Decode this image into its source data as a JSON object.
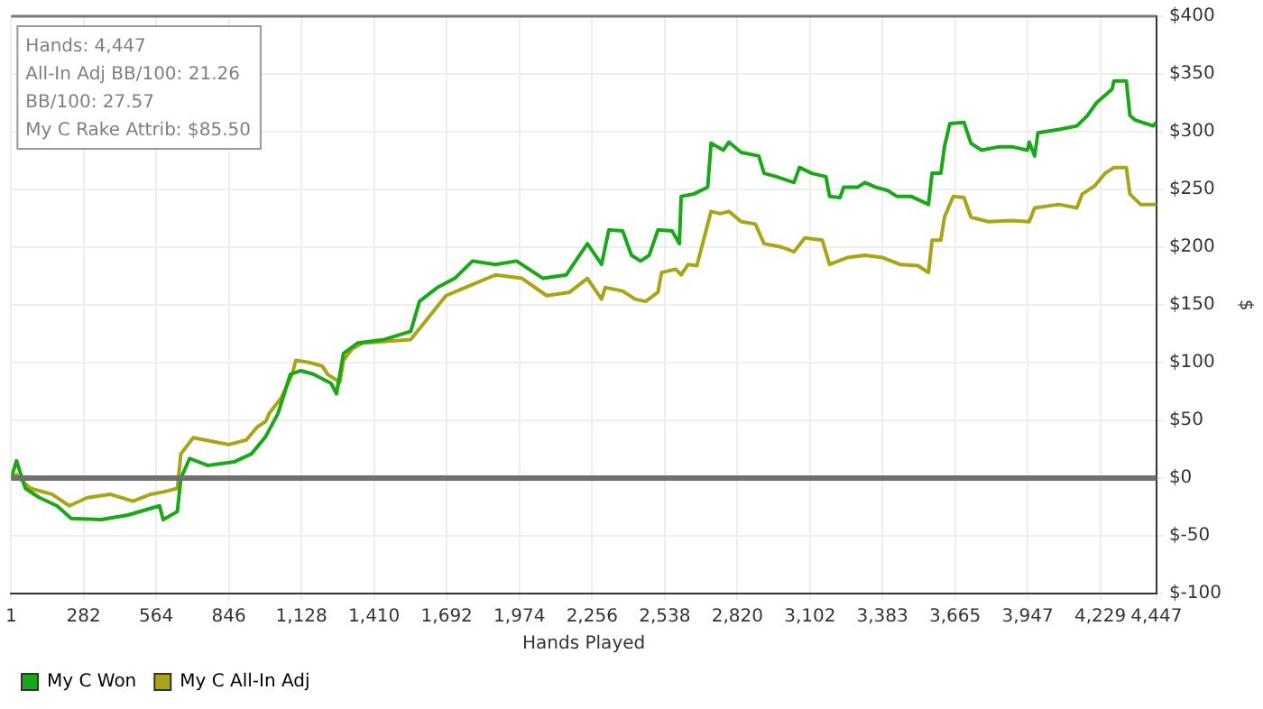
{
  "chart_data": {
    "type": "line",
    "xlabel": "Hands Played",
    "ylabel": "$",
    "annotations": [
      "Hands: 4,447",
      "All-In Adj BB/100: 21.26",
      "BB/100: 27.57",
      "My C Rake Attrib: $85.50"
    ],
    "xlim": [
      1,
      4447
    ],
    "xticks": [
      1,
      282,
      564,
      846,
      {
        "value": 1128,
        "label": "1,128"
      },
      {
        "value": 1410,
        "label": "1,410"
      },
      {
        "value": 1692,
        "label": "1,692"
      },
      {
        "value": 1974,
        "label": "1,974"
      },
      {
        "value": 2256,
        "label": "2,256"
      },
      {
        "value": 2538,
        "label": "2,538"
      },
      {
        "value": 2820,
        "label": "2,820"
      },
      {
        "value": 3102,
        "label": "3,102"
      },
      {
        "value": 3383,
        "label": "3,383"
      },
      {
        "value": 3665,
        "label": "3,665"
      },
      {
        "value": 3947,
        "label": "3,947"
      },
      {
        "value": 4229,
        "label": "4,229"
      },
      {
        "value": 4447,
        "label": "4,447"
      }
    ],
    "ylim": [
      -100,
      400
    ],
    "yticks": [
      {
        "value": -100,
        "label": "$-100"
      },
      {
        "value": -50,
        "label": "$-50"
      },
      {
        "value": 0,
        "label": "$0"
      },
      {
        "value": 50,
        "label": "$50"
      },
      {
        "value": 100,
        "label": "$100"
      },
      {
        "value": 150,
        "label": "$150"
      },
      {
        "value": 200,
        "label": "$200"
      },
      {
        "value": 250,
        "label": "$250"
      },
      {
        "value": 300,
        "label": "$300"
      },
      {
        "value": 350,
        "label": "$350"
      },
      {
        "value": 400,
        "label": "$400"
      }
    ],
    "grid": true,
    "legend": "bottom left",
    "marker": "none",
    "line_style": "solid",
    "ref_lines": [
      {
        "axis": "y",
        "value": 0,
        "color": "#707070"
      }
    ],
    "series": [
      {
        "name": "My C Won",
        "color": "#1aa81a",
        "x": [
          1,
          22,
          56,
          111,
          179,
          234,
          351,
          454,
          577,
          591,
          646,
          660,
          694,
          763,
          866,
          934,
          989,
          1037,
          1085,
          1126,
          1174,
          1243,
          1264,
          1291,
          1346,
          1449,
          1552,
          1586,
          1655,
          1723,
          1792,
          1881,
          1963,
          2066,
          2156,
          2238,
          2293,
          2321,
          2375,
          2409,
          2444,
          2478,
          2512,
          2567,
          2595,
          2602,
          2650,
          2705,
          2718,
          2766,
          2787,
          2835,
          2903,
          2924,
          2972,
          3040,
          3061,
          3109,
          3164,
          3178,
          3219,
          3233,
          3288,
          3315,
          3356,
          3404,
          3439,
          3494,
          3562,
          3576,
          3610,
          3624,
          3645,
          3700,
          3727,
          3768,
          3837,
          3885,
          3946,
          3953,
          3974,
          3987,
          4069,
          4138,
          4179,
          4214,
          4275,
          4282,
          4330,
          4344,
          4365,
          4434,
          4447
        ],
        "values": [
          0,
          15,
          -9,
          -17,
          -24,
          -35,
          -36,
          -32,
          -24,
          -36,
          -29,
          0,
          17,
          11,
          14,
          21,
          36,
          56,
          90,
          93,
          90,
          82,
          73,
          108,
          117,
          120,
          127,
          153,
          165,
          173,
          188,
          185,
          188,
          173,
          176,
          203,
          185,
          215,
          214,
          193,
          188,
          193,
          215,
          214,
          203,
          244,
          246,
          252,
          290,
          284,
          291,
          282,
          279,
          264,
          261,
          256,
          269,
          264,
          261,
          244,
          243,
          252,
          252,
          256,
          252,
          249,
          244,
          244,
          237,
          264,
          264,
          287,
          307,
          308,
          290,
          284,
          287,
          287,
          284,
          291,
          279,
          299,
          302,
          305,
          314,
          325,
          337,
          344,
          344,
          314,
          310,
          305,
          308
        ]
      },
      {
        "name": "My C All-In Adj",
        "color": "#aaa417",
        "x": [
          1,
          22,
          42,
          76,
          159,
          227,
          296,
          385,
          474,
          543,
          591,
          646,
          660,
          708,
          776,
          845,
          914,
          955,
          989,
          1003,
          1051,
          1092,
          1106,
          1161,
          1209,
          1229,
          1277,
          1291,
          1325,
          1366,
          1552,
          1689,
          1881,
          1984,
          2080,
          2169,
          2238,
          2293,
          2307,
          2375,
          2423,
          2464,
          2512,
          2526,
          2581,
          2602,
          2629,
          2663,
          2718,
          2753,
          2787,
          2835,
          2890,
          2924,
          2993,
          3040,
          3082,
          3150,
          3178,
          3247,
          3315,
          3384,
          3452,
          3521,
          3562,
          3576,
          3610,
          3624,
          3658,
          3700,
          3727,
          3796,
          3885,
          3953,
          3974,
          4069,
          4138,
          4159,
          4207,
          4248,
          4282,
          4330,
          4344,
          4385,
          4447
        ],
        "values": [
          0,
          3,
          -2,
          -9,
          -14,
          -24,
          -17,
          -14,
          -20,
          -14,
          -12,
          -9,
          21,
          35,
          32,
          29,
          33,
          44,
          49,
          56,
          70,
          90,
          102,
          100,
          97,
          90,
          83,
          102,
          112,
          117,
          120,
          158,
          176,
          173,
          158,
          161,
          173,
          155,
          165,
          162,
          155,
          153,
          161,
          178,
          181,
          176,
          185,
          184,
          231,
          229,
          231,
          222,
          220,
          203,
          200,
          196,
          208,
          206,
          185,
          191,
          193,
          191,
          185,
          184,
          178,
          206,
          206,
          226,
          244,
          243,
          226,
          222,
          223,
          222,
          234,
          237,
          234,
          246,
          253,
          264,
          269,
          269,
          246,
          237,
          237
        ]
      }
    ]
  }
}
